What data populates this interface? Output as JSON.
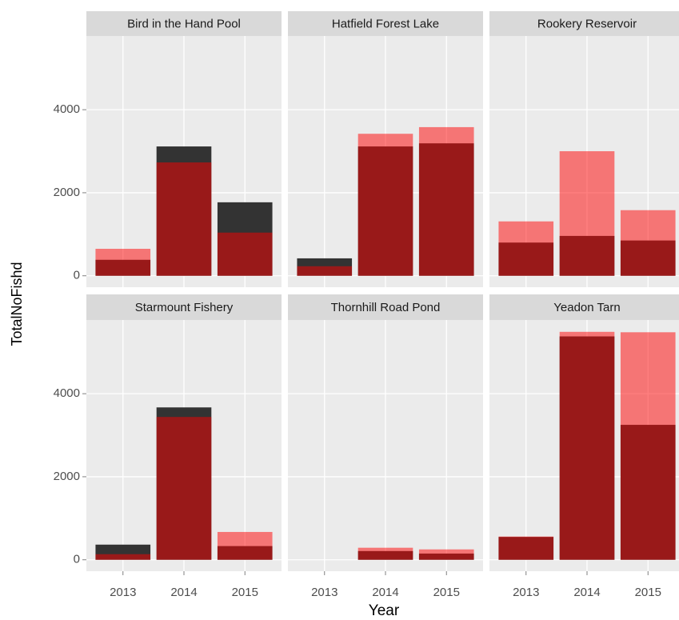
{
  "chart_data": {
    "type": "bar",
    "x_label": "Year",
    "y_label": "TotalNoFishd",
    "categories": [
      "2013",
      "2014",
      "2015"
    ],
    "ylim": [
      -275,
      5775
    ],
    "yticks": [
      0,
      2000,
      4000
    ],
    "grid": true,
    "facets": [
      {
        "title": "Bird in the Hand Pool",
        "series": [
          {
            "color": "#333333",
            "alpha": 1,
            "values": [
              385,
              3115,
              1770
            ]
          },
          {
            "color": "#ff0000",
            "alpha": 0.5,
            "values": [
              650,
              2730,
              1040
            ]
          }
        ]
      },
      {
        "title": "Hatfield Forest Lake",
        "series": [
          {
            "color": "#333333",
            "alpha": 1,
            "values": [
              420,
              3115,
              3190
            ]
          },
          {
            "color": "#ff0000",
            "alpha": 0.5,
            "values": [
              230,
              3420,
              3580
            ]
          }
        ]
      },
      {
        "title": "Rookery Reservoir",
        "series": [
          {
            "color": "#333333",
            "alpha": 1,
            "values": [
              800,
              960,
              850
            ]
          },
          {
            "color": "#ff0000",
            "alpha": 0.5,
            "values": [
              1310,
              3000,
              1580
            ]
          }
        ]
      },
      {
        "title": "Starmount Fishery",
        "series": [
          {
            "color": "#333333",
            "alpha": 1,
            "values": [
              365,
              3670,
              330
            ]
          },
          {
            "color": "#ff0000",
            "alpha": 0.5,
            "values": [
              135,
              3440,
              670
            ]
          }
        ]
      },
      {
        "title": "Thornhill Road Pond",
        "series": [
          {
            "color": "#333333",
            "alpha": 1,
            "values": [
              0,
              210,
              150
            ]
          },
          {
            "color": "#ff0000",
            "alpha": 0.5,
            "values": [
              0,
              290,
              250
            ]
          }
        ]
      },
      {
        "title": "Yeadon Tarn",
        "series": [
          {
            "color": "#333333",
            "alpha": 1,
            "values": [
              550,
              5380,
              3250
            ]
          },
          {
            "color": "#ff0000",
            "alpha": 0.5,
            "values": [
              560,
              5490,
              5480
            ]
          }
        ]
      }
    ]
  }
}
